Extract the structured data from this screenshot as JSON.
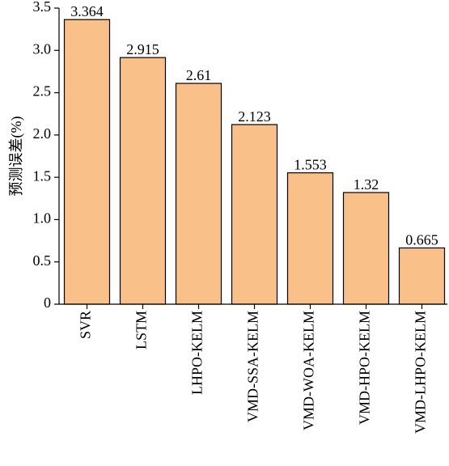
{
  "chart_data": {
    "type": "bar",
    "y_label": "预测误差(%)",
    "categories": [
      "SVR",
      "LSTM",
      "LHPO-KELM",
      "VMD-SSA-KELM",
      "VMD-WOA-KELM",
      "VMD-HPO-KELM",
      "VMD-LHPO-KELM"
    ],
    "values": [
      3.364,
      2.915,
      2.61,
      2.123,
      1.553,
      1.32,
      0.665
    ],
    "color": "#f9c08a",
    "ylim": [
      0,
      3.5
    ],
    "yticks": [
      0,
      0.5,
      {
        "value": 1,
        "label": "1.0"
      },
      1.5,
      {
        "value": 2,
        "label": "2.0"
      },
      2.5,
      {
        "value": 3,
        "label": "3.0"
      },
      3.5
    ]
  }
}
